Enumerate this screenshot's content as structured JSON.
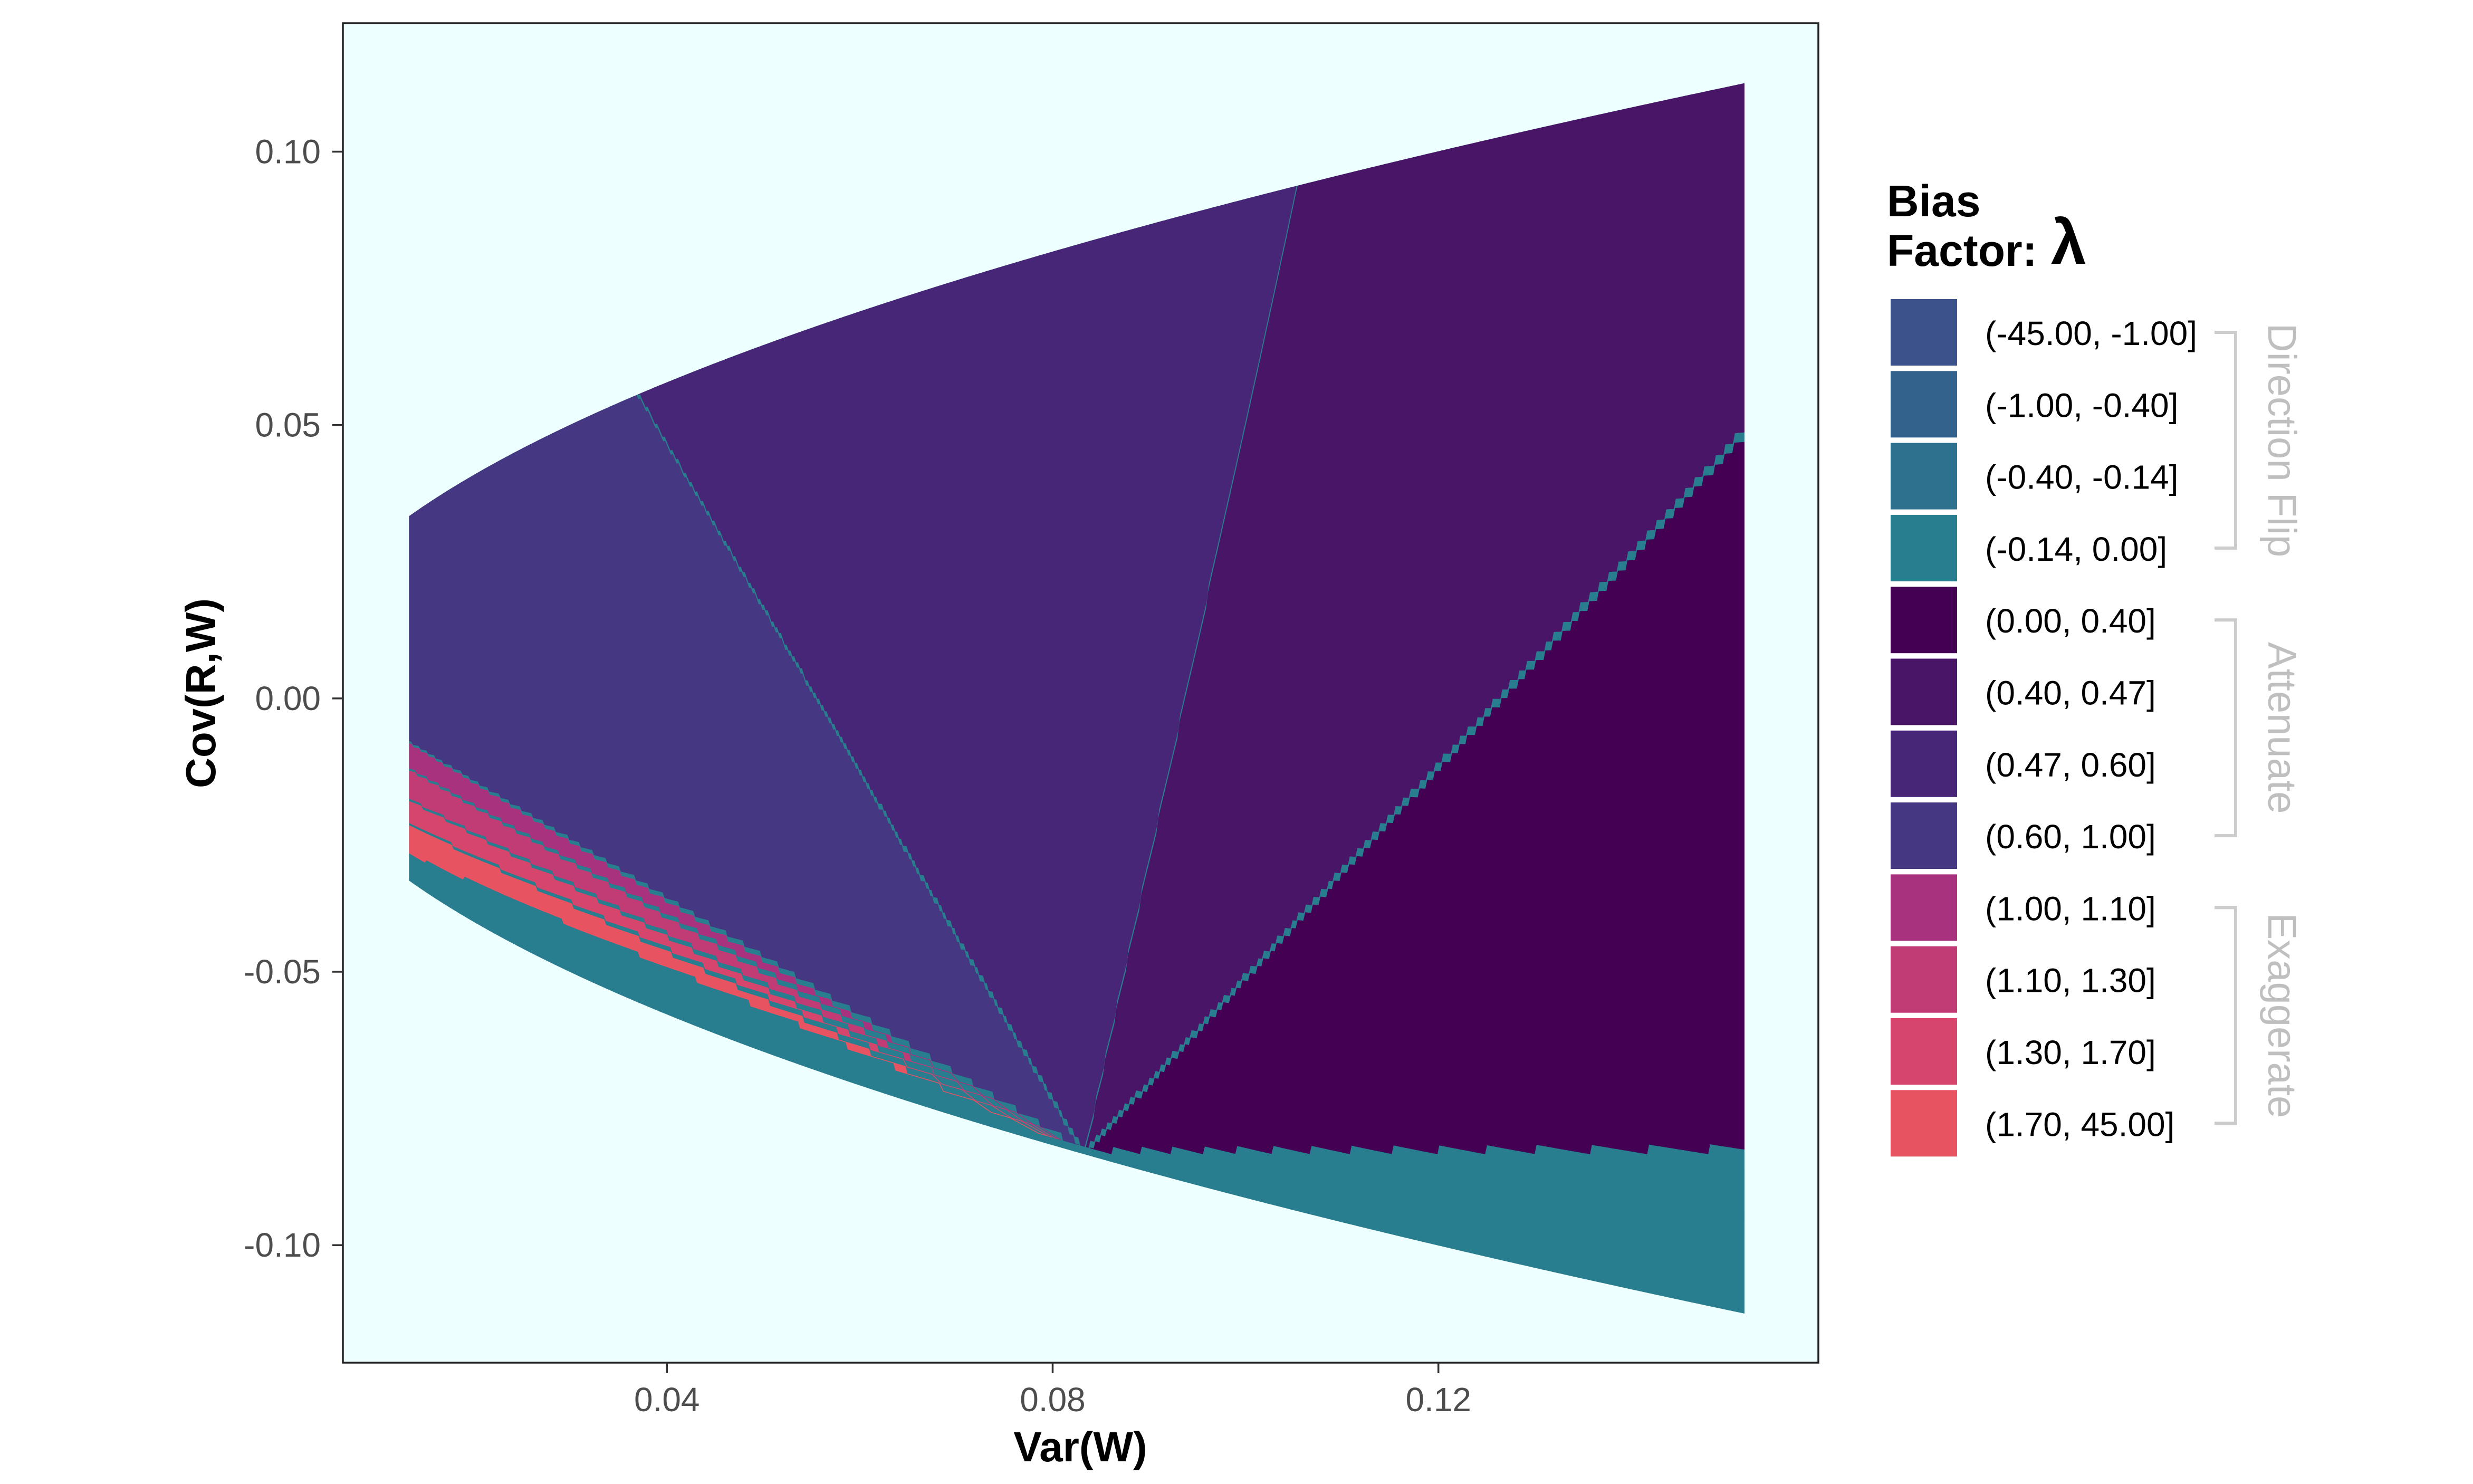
{
  "chart_data": {
    "type": "area",
    "title": "",
    "xlabel": "Var(W)",
    "ylabel": "Cov(R,W)",
    "xlim": [
      0.0064,
      0.1594
    ],
    "ylim": [
      -0.1215,
      0.1235
    ],
    "x_ticks": [
      {
        "value": 0.04,
        "label": "0.04"
      },
      {
        "value": 0.08,
        "label": "0.08"
      },
      {
        "value": 0.12,
        "label": "0.12"
      }
    ],
    "y_ticks": [
      {
        "value": 0.1,
        "label": "0.10"
      },
      {
        "value": 0.05,
        "label": "0.05"
      },
      {
        "value": 0.0,
        "label": "0.00"
      },
      {
        "value": -0.05,
        "label": "-0.05"
      },
      {
        "value": -0.1,
        "label": "-0.10"
      }
    ],
    "panel_background": "#edfffe",
    "grid": false,
    "vertex": {
      "x": 0.0833,
      "y": -0.0833
    },
    "boundary_curve": "cov = ±sqrt(var/12)",
    "x_range_filled": [
      0.0133,
      0.1517
    ],
    "regions": [
      {
        "label": "(-45.00, -1.00]",
        "color": "#3b528b",
        "slope_range": [
          -0.196,
          -0.14
        ]
      },
      {
        "label": "(-1.00, -0.40]",
        "color": "#33638d",
        "slope_range": [
          -0.14,
          -0.099
        ]
      },
      {
        "label": "(-0.40, -0.14]",
        "color": "#2d718e",
        "slope_range": [
          -0.099,
          -0.04
        ]
      },
      {
        "label": "(-0.14, 0.00]",
        "color": "#287d8e",
        "slope_range": [
          -0.04,
          0.0
        ]
      },
      {
        "label": "(0.00, 0.40]",
        "color": "#440154",
        "slope_range": [
          0.0,
          1.93
        ]
      },
      {
        "label": "(0.40, 0.47]",
        "color": "#481567",
        "slope_range": [
          1.93,
          8.0
        ]
      },
      {
        "label": "(0.47, 0.60]",
        "color": "#482677",
        "slope_range": [
          8.0,
          -3.0
        ]
      },
      {
        "label": "(0.60, 1.00]",
        "color": "#453781",
        "slope_range": [
          -3.0,
          -1.075
        ]
      },
      {
        "label": "(1.00, 1.10]",
        "color": "#a8327d",
        "slope_range": [
          -1.075,
          -1.005
        ]
      },
      {
        "label": "(1.10, 1.30]",
        "color": "#c13b75",
        "slope_range": [
          -1.005,
          -0.925
        ]
      },
      {
        "label": "(1.30, 1.70]",
        "color": "#d6456c",
        "slope_range": [
          -0.925,
          -0.86
        ]
      },
      {
        "label": "(1.70, 45.00]",
        "color": "#e85362",
        "slope_range": [
          -0.86,
          -0.78
        ]
      }
    ]
  },
  "legend": {
    "title_line1": "Bias",
    "title_line2": "Factor:",
    "title_symbol": "λ",
    "position": "right",
    "groups": [
      {
        "label": "Direction Flip",
        "first": 0,
        "last": 3
      },
      {
        "label": "Attenuate",
        "first": 4,
        "last": 7
      },
      {
        "label": "Exaggerate",
        "first": 8,
        "last": 11
      }
    ],
    "group_label_color": "#bfbfbf"
  }
}
